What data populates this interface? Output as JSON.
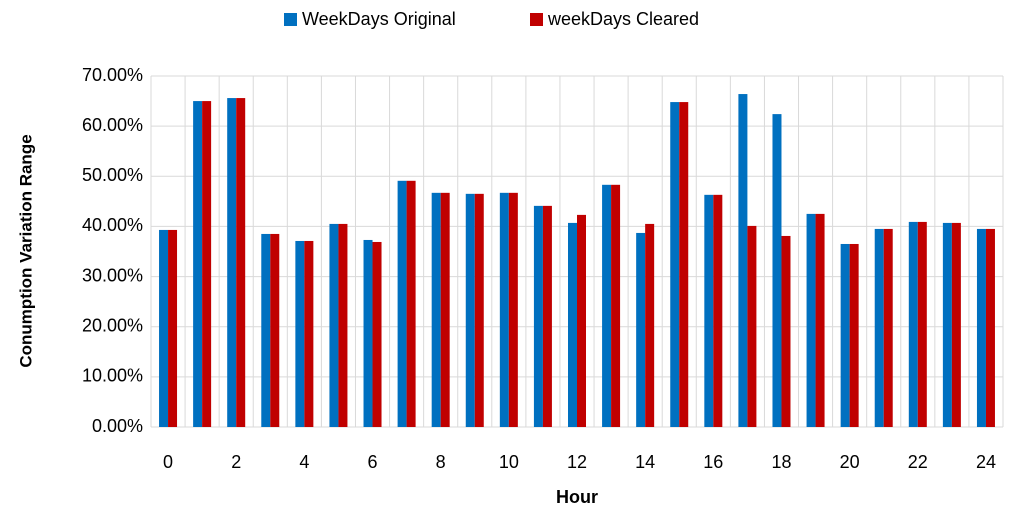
{
  "chart_data": {
    "type": "bar",
    "x_label": "Hour",
    "y_label": "Conumption Variation Range",
    "categories": [
      0,
      null,
      2,
      null,
      4,
      null,
      6,
      null,
      8,
      null,
      10,
      null,
      12,
      null,
      14,
      null,
      16,
      null,
      18,
      null,
      20,
      null,
      22,
      null,
      24
    ],
    "series": [
      {
        "name": "WeekDays Original",
        "color": "#0070c0",
        "values": [
          39.3,
          65.0,
          65.6,
          38.5,
          37.1,
          40.5,
          37.3,
          49.1,
          46.7,
          46.5,
          46.7,
          44.1,
          40.7,
          48.3,
          38.7,
          64.8,
          46.3,
          66.4,
          62.4,
          42.5,
          36.5,
          39.5,
          40.9,
          40.7,
          39.5
        ]
      },
      {
        "name": "weekDays Cleared",
        "color": "#c00000",
        "values": [
          39.3,
          65.0,
          65.6,
          38.5,
          37.1,
          40.5,
          36.9,
          49.1,
          46.7,
          46.5,
          46.7,
          44.1,
          42.3,
          48.3,
          40.5,
          64.8,
          46.3,
          40.1,
          38.1,
          42.5,
          36.5,
          39.5,
          40.9,
          40.7,
          39.5
        ]
      }
    ],
    "ylim": [
      0,
      70
    ],
    "yticks": [
      {
        "value": 0,
        "label": "0.00%"
      },
      {
        "value": 10,
        "label": "10.00%"
      },
      {
        "value": 20,
        "label": "20.00%"
      },
      {
        "value": 30,
        "label": "30.00%"
      },
      {
        "value": 40,
        "label": "40.00%"
      },
      {
        "value": 50,
        "label": "50.00%"
      },
      {
        "value": 60,
        "label": "60.00%"
      },
      {
        "value": 70,
        "label": "70.00%"
      }
    ],
    "grid": true,
    "legend": "top"
  }
}
